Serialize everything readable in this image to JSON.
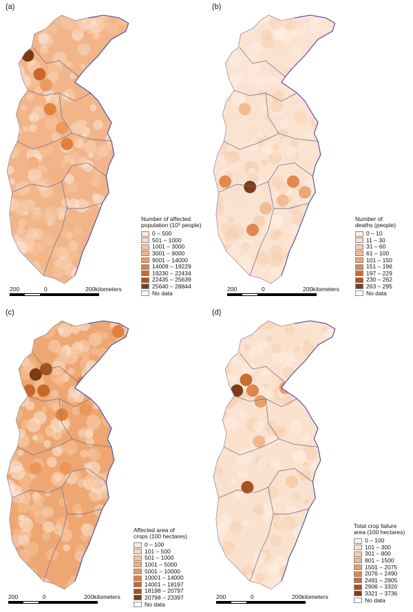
{
  "panels": [
    {
      "id": "a",
      "label": "(a)",
      "legend_title": [
        "Number of affected",
        "population (10³ people)"
      ],
      "classes": [
        "0 – 500",
        "501 – 1000",
        "1001 – 3000",
        "3001 – 9000",
        "9001 – 14000",
        "14009 – 19229",
        "19230 – 22434",
        "22435 – 25639",
        "25640 – 28844",
        "No data"
      ],
      "colors": [
        "#fce8d8",
        "#f9d6bc",
        "#f6c49f",
        "#f2b182",
        "#ec9a5f",
        "#e2813d",
        "#c9692a",
        "#a55220",
        "#7e3c16",
        "#ffffff"
      ],
      "base_color": "#f2b58a",
      "hot": [
        [
          0.16,
          0.15,
          "#7e3c16"
        ],
        [
          0.25,
          0.22,
          "#c9692a"
        ],
        [
          0.33,
          0.35,
          "#e2813d"
        ],
        [
          0.3,
          0.26,
          "#ec9a5f"
        ],
        [
          0.42,
          0.42,
          "#ec9a5f"
        ],
        [
          0.46,
          0.48,
          "#e2813d"
        ],
        [
          0.38,
          0.6,
          "#f2b182"
        ],
        [
          0.2,
          0.55,
          "#f2b182"
        ]
      ],
      "scale": {
        "left": "200",
        "mid": "0",
        "right": "200kilometers"
      }
    },
    {
      "id": "b",
      "label": "(b)",
      "legend_title": [
        "Number of",
        "deaths (people)"
      ],
      "classes": [
        "0 – 10",
        "11 – 30",
        "31 – 60",
        "61 – 100",
        "101 – 150",
        "151 – 196",
        "197 – 229",
        "230 – 262",
        "263 – 295",
        "No data"
      ],
      "colors": [
        "#fdeee2",
        "#fae0cc",
        "#f7d0b1",
        "#f2bc92",
        "#eca676",
        "#e2894f",
        "#c96d31",
        "#a55220",
        "#7e3c16",
        "#ffffff"
      ],
      "base_color": "#fbe3d2",
      "hot": [
        [
          0.24,
          0.35,
          "#f2bc92"
        ],
        [
          0.09,
          0.62,
          "#e2894f"
        ],
        [
          0.28,
          0.64,
          "#7e3c16"
        ],
        [
          0.61,
          0.62,
          "#e2894f"
        ],
        [
          0.7,
          0.66,
          "#eca676"
        ],
        [
          0.53,
          0.69,
          "#f2bc92"
        ],
        [
          0.3,
          0.8,
          "#e2894f"
        ],
        [
          0.4,
          0.72,
          "#f2bc92"
        ]
      ],
      "scale": {
        "left": "200",
        "mid": "0",
        "right": "200kilometers"
      }
    },
    {
      "id": "c",
      "label": "(c)",
      "legend_title": [
        "Affected area of",
        "crops (100 hectares)"
      ],
      "classes": [
        "0 – 100",
        "101 – 500",
        "501 – 1000",
        "1001 – 5000",
        "5001 – 10000",
        "10001 – 14000",
        "14001 – 18197",
        "18198 – 20797",
        "20798 – 23397",
        "No data"
      ],
      "colors": [
        "#fce9da",
        "#f9d6bb",
        "#f6c29c",
        "#f2ad7c",
        "#ec965c",
        "#e0803d",
        "#c5692b",
        "#a15220",
        "#7c3c16",
        "#ffffff"
      ],
      "base_color": "#eea772",
      "hot": [
        [
          0.22,
          0.2,
          "#7c3c16"
        ],
        [
          0.3,
          0.18,
          "#a15220"
        ],
        [
          0.28,
          0.26,
          "#c5692b"
        ],
        [
          0.17,
          0.26,
          "#c5692b"
        ],
        [
          0.58,
          0.23,
          "#e0803d"
        ],
        [
          0.42,
          0.35,
          "#e0803d"
        ],
        [
          0.6,
          0.33,
          "#ec965c"
        ],
        [
          0.85,
          0.04,
          "#e0803d"
        ],
        [
          0.22,
          0.55,
          "#ec965c"
        ],
        [
          0.45,
          0.55,
          "#ec965c"
        ]
      ],
      "scale": {
        "left": "200",
        "mid": "0",
        "right": "200kilometers"
      }
    },
    {
      "id": "d",
      "label": "(d)",
      "legend_title": [
        "Total crop failure",
        "area (100 hectares)"
      ],
      "classes": [
        "0 – 100",
        "101 – 300",
        "301 – 800",
        "801 – 1500",
        "1501 – 2075",
        "2076 – 2490",
        "2491 – 2905",
        "2906 – 3320",
        "3321 – 3736",
        "No data"
      ],
      "colors": [
        "#fdeee2",
        "#fae0cc",
        "#f6cdad",
        "#f2b88d",
        "#eb9f69",
        "#e08649",
        "#c96d31",
        "#a55220",
        "#7e3c16",
        "#ffffff"
      ],
      "base_color": "#fbe2cf",
      "hot": [
        [
          0.18,
          0.26,
          "#7e3c16"
        ],
        [
          0.25,
          0.22,
          "#c96d31"
        ],
        [
          0.3,
          0.26,
          "#e08649"
        ],
        [
          0.36,
          0.3,
          "#eb9f69"
        ],
        [
          0.55,
          0.25,
          "#eb9f69"
        ],
        [
          0.35,
          0.45,
          "#f2b88d"
        ],
        [
          0.26,
          0.62,
          "#a55220"
        ],
        [
          0.6,
          0.6,
          "#f6cdad"
        ]
      ],
      "scale": {
        "left": "200",
        "mid": "0",
        "right": "200kilometers"
      }
    }
  ]
}
